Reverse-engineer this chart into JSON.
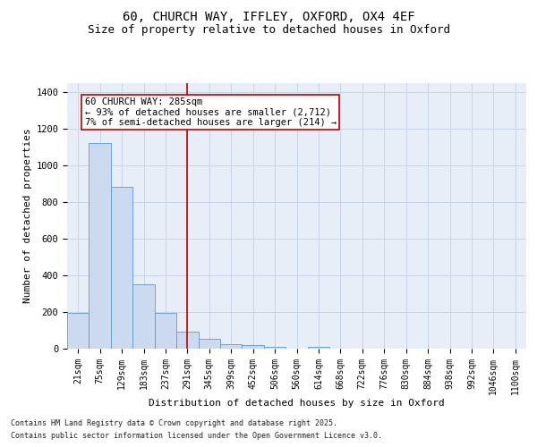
{
  "title": "60, CHURCH WAY, IFFLEY, OXFORD, OX4 4EF",
  "subtitle": "Size of property relative to detached houses in Oxford",
  "xlabel": "Distribution of detached houses by size in Oxford",
  "ylabel": "Number of detached properties",
  "categories": [
    "21sqm",
    "75sqm",
    "129sqm",
    "183sqm",
    "237sqm",
    "291sqm",
    "345sqm",
    "399sqm",
    "452sqm",
    "506sqm",
    "560sqm",
    "614sqm",
    "668sqm",
    "722sqm",
    "776sqm",
    "830sqm",
    "884sqm",
    "938sqm",
    "992sqm",
    "1046sqm",
    "1100sqm"
  ],
  "values": [
    195,
    1120,
    880,
    350,
    195,
    95,
    55,
    22,
    18,
    12,
    0,
    10,
    0,
    0,
    0,
    0,
    0,
    0,
    0,
    0,
    0
  ],
  "bar_color": "#ccdaf0",
  "bar_edge_color": "#5b9bd5",
  "vline_x_index": 5,
  "vline_color": "#c00000",
  "annotation_line1": "60 CHURCH WAY: 285sqm",
  "annotation_line2": "← 93% of detached houses are smaller (2,712)",
  "annotation_line3": "7% of semi-detached houses are larger (214) →",
  "annotation_box_color": "#c00000",
  "ylim": [
    0,
    1450
  ],
  "yticks": [
    0,
    200,
    400,
    600,
    800,
    1000,
    1200,
    1400
  ],
  "grid_color": "#c8d4e8",
  "bg_color": "#e8eef8",
  "footer_line1": "Contains HM Land Registry data © Crown copyright and database right 2025.",
  "footer_line2": "Contains public sector information licensed under the Open Government Licence v3.0.",
  "title_fontsize": 10,
  "subtitle_fontsize": 9,
  "tick_fontsize": 7,
  "ylabel_fontsize": 8,
  "xlabel_fontsize": 8,
  "annot_fontsize": 7.5,
  "footer_fontsize": 6
}
